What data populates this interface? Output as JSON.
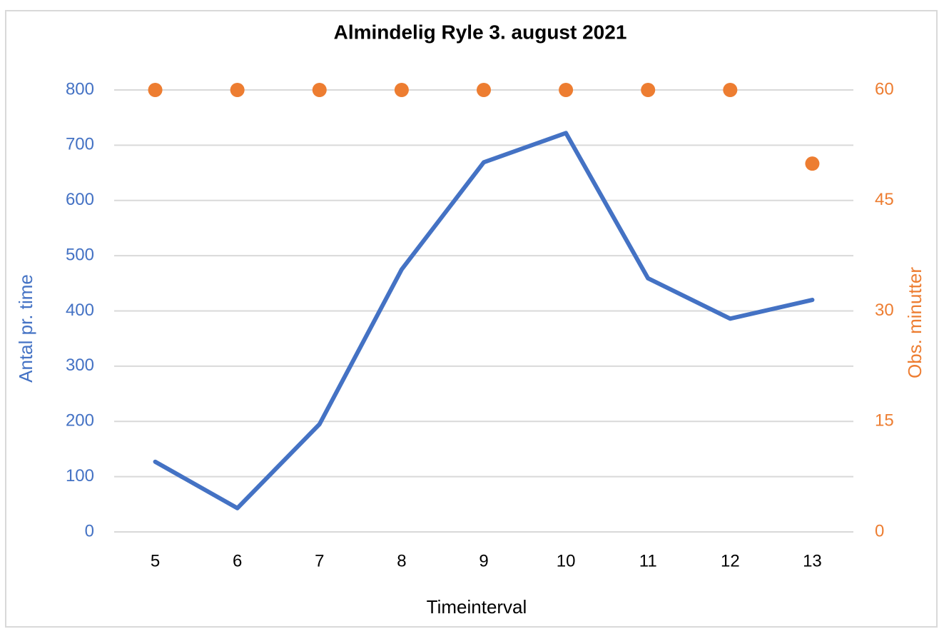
{
  "chart_data": {
    "type": "combo",
    "title": "Almindelig Ryle 3. august 2021",
    "x_label": "Timeinterval",
    "y_label": "Antal pr. time",
    "y2_label": "Obs. minutter",
    "categories": [
      "5",
      "6",
      "7",
      "8",
      "9",
      "10",
      "11",
      "12",
      "13"
    ],
    "series": [
      {
        "name": "Antal pr. time",
        "type": "line",
        "color": "#4472c4",
        "values": [
          127,
          43,
          195,
          475,
          669,
          722,
          459,
          386,
          420
        ]
      },
      {
        "name": "Obs. minutter",
        "type": "scatter",
        "color": "#ed7d31",
        "axis": "y2",
        "values": [
          60,
          60,
          60,
          60,
          60,
          60,
          60,
          60,
          50
        ]
      }
    ],
    "ylim": [
      0,
      800
    ],
    "yticks": [
      0,
      100,
      200,
      300,
      400,
      500,
      600,
      700,
      800
    ],
    "y2lim": [
      0,
      60
    ],
    "y2ticks": [
      0,
      15,
      30,
      45,
      60
    ],
    "grid": true,
    "legend": false
  }
}
